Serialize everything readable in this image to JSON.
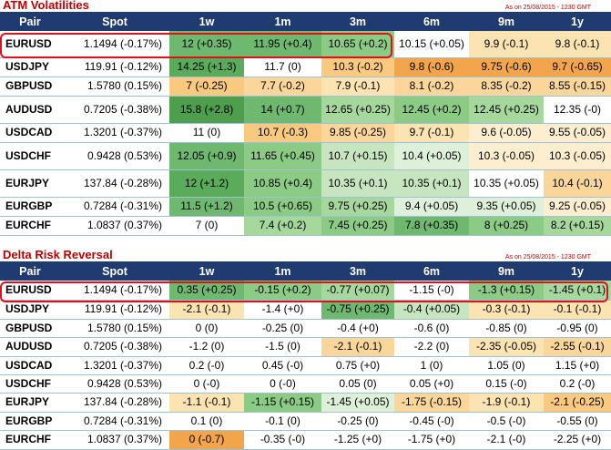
{
  "atm": {
    "title": "ATM Volatilities",
    "asof": "As on 25/08/2015 - 1230 GMT",
    "headers": [
      "Pair",
      "Spot",
      "1w",
      "1m",
      "3m",
      "6m",
      "9m",
      "1y"
    ],
    "rows": [
      {
        "pair": "EURUSD",
        "spot": "1.1494 (-0.17%)",
        "cells": [
          {
            "t": "12 (+0.35)",
            "c": "#6fb86f"
          },
          {
            "t": "11.95 (+0.4)",
            "c": "#6fb86f"
          },
          {
            "t": "10.65 (+0.2)",
            "c": "#8ccb86"
          },
          {
            "t": "10.15 (+0.05)",
            "c": "#ffffff"
          },
          {
            "t": "9.9 (-0.1)",
            "c": "#fbe3b2"
          },
          {
            "t": "9.8 (-0.1)",
            "c": "#fbe3b2"
          }
        ]
      },
      {
        "pair": "USDJPY",
        "spot": "119.91 (-0.12%)",
        "cells": [
          {
            "t": "14.25 (+1.3)",
            "c": "#5aac5a"
          },
          {
            "t": "11.7 (0)",
            "c": "#ffffff"
          },
          {
            "t": "10.3 (-0.2)",
            "c": "#f8c97e"
          },
          {
            "t": "9.8 (-0.6)",
            "c": "#f2a54b"
          },
          {
            "t": "9.75 (-0.6)",
            "c": "#f2a54b"
          },
          {
            "t": "9.7 (-0.65)",
            "c": "#f2a54b"
          }
        ]
      },
      {
        "pair": "GBPUSD",
        "spot": "1.5780 (0.15%)",
        "cells": [
          {
            "t": "7 (-0.25)",
            "c": "#f8c97e"
          },
          {
            "t": "7.7 (-0.2)",
            "c": "#fad69a"
          },
          {
            "t": "7.9 (-0.1)",
            "c": "#fbe3b2"
          },
          {
            "t": "8.1 (-0.2)",
            "c": "#fad69a"
          },
          {
            "t": "8.35 (-0.2)",
            "c": "#fad69a"
          },
          {
            "t": "8.55 (-0.15)",
            "c": "#fad69a"
          }
        ]
      },
      {
        "pair": "AUDUSD",
        "spot": "0.7205 (-0.38%)",
        "cells": [
          {
            "t": "15.8 (+2.8)",
            "c": "#4e9e4e"
          },
          {
            "t": "14 (+0.7)",
            "c": "#6fb86f"
          },
          {
            "t": "12.65 (+0.25)",
            "c": "#a6d79d"
          },
          {
            "t": "12.45 (+0.2)",
            "c": "#8ccb86"
          },
          {
            "t": "12.45 (+0.25)",
            "c": "#a6d79d"
          },
          {
            "t": "12.35 (-0)",
            "c": "#ffffff"
          }
        ]
      },
      {
        "pair": "USDCAD",
        "spot": "1.3201 (-0.37%)",
        "cells": [
          {
            "t": "11 (0)",
            "c": "#ffffff"
          },
          {
            "t": "10.7 (-0.3)",
            "c": "#f8c97e"
          },
          {
            "t": "9.85 (-0.25)",
            "c": "#fad69a"
          },
          {
            "t": "9.7 (-0.1)",
            "c": "#fbe3b2"
          },
          {
            "t": "9.6 (-0.05)",
            "c": "#fdeed0"
          },
          {
            "t": "9.55 (-0.05)",
            "c": "#fdeed0"
          }
        ]
      },
      {
        "pair": "USDCHF",
        "spot": "0.9428 (0.53%)",
        "cells": [
          {
            "t": "12.05 (+0.9)",
            "c": "#6fb86f"
          },
          {
            "t": "11.65 (+0.45)",
            "c": "#8ccb86"
          },
          {
            "t": "10.7 (+0.15)",
            "c": "#c7e6bf"
          },
          {
            "t": "10.4 (+0.05)",
            "c": "#dff0da"
          },
          {
            "t": "10.3 (-0.05)",
            "c": "#fdeed0"
          },
          {
            "t": "10.3 (-0.05)",
            "c": "#fdeed0"
          }
        ]
      },
      {
        "pair": "EURJPY",
        "spot": "137.84 (-0.28%)",
        "cells": [
          {
            "t": "12 (+1.2)",
            "c": "#5aac5a"
          },
          {
            "t": "10.85 (+0.4)",
            "c": "#8ccb86"
          },
          {
            "t": "10.35 (+0.1)",
            "c": "#c7e6bf"
          },
          {
            "t": "10.35 (+0.1)",
            "c": "#c7e6bf"
          },
          {
            "t": "10.35 (+0.05)",
            "c": "#ffffff"
          },
          {
            "t": "10.4 (-0.1)",
            "c": "#fad69a"
          }
        ]
      },
      {
        "pair": "EURGBP",
        "spot": "0.7284 (-0.31%)",
        "cells": [
          {
            "t": "11.5 (+1.2)",
            "c": "#6fb86f"
          },
          {
            "t": "10.5 (+0.65)",
            "c": "#8ccb86"
          },
          {
            "t": "9.75 (+0.25)",
            "c": "#a6d79d"
          },
          {
            "t": "9.4 (+0.05)",
            "c": "#dff0da"
          },
          {
            "t": "9.35 (+0.05)",
            "c": "#dff0da"
          },
          {
            "t": "9.25 (-0.05)",
            "c": "#fdeed0"
          }
        ]
      },
      {
        "pair": "EURCHF",
        "spot": "1.0837 (0.37%)",
        "cells": [
          {
            "t": "7 (0)",
            "c": "#ffffff"
          },
          {
            "t": "7.4 (+0.2)",
            "c": "#a6d79d"
          },
          {
            "t": "7.45 (+0.25)",
            "c": "#8ccb86"
          },
          {
            "t": "7.8 (+0.35)",
            "c": "#6fb86f"
          },
          {
            "t": "8 (+0.25)",
            "c": "#8ccb86"
          },
          {
            "t": "8.2 (+0.15)",
            "c": "#a6d79d"
          }
        ]
      }
    ]
  },
  "rr": {
    "title": "Delta Risk Reversal",
    "asof": "As on 25/08/2015 - 1230 GMT",
    "headers": [
      "Pair",
      "Spot",
      "1w",
      "1m",
      "3m",
      "6m",
      "9m",
      "1y"
    ],
    "rows": [
      {
        "pair": "EURUSD",
        "spot": "1.1494 (-0.17%)",
        "cells": [
          {
            "t": "0.35 (+0.25)",
            "c": "#6fb86f"
          },
          {
            "t": "-0.15 (+0.2)",
            "c": "#8ccb86"
          },
          {
            "t": "-0.77 (+0.07)",
            "c": "#a6d79d"
          },
          {
            "t": "-1.15 (-0)",
            "c": "#ffffff"
          },
          {
            "t": "-1.3 (+0.15)",
            "c": "#8ccb86"
          },
          {
            "t": "-1.45 (+0.1)",
            "c": "#a6d79d"
          }
        ]
      },
      {
        "pair": "USDJPY",
        "spot": "119.91 (-0.12%)",
        "cells": [
          {
            "t": "-2.1 (-0.1)",
            "c": "#fbe3b2"
          },
          {
            "t": "-1.4 (+0)",
            "c": "#ffffff"
          },
          {
            "t": "-0.75 (+0.25)",
            "c": "#6fb86f"
          },
          {
            "t": "-0.4 (+0.05)",
            "c": "#c7e6bf"
          },
          {
            "t": "-0.3 (-0.1)",
            "c": "#fbe3b2"
          },
          {
            "t": "-0.1 (-0.1)",
            "c": "#fbe3b2"
          }
        ]
      },
      {
        "pair": "GBPUSD",
        "spot": "1.5780 (0.15%)",
        "cells": [
          {
            "t": "0 (0)",
            "c": "#ffffff"
          },
          {
            "t": "-0.25 (0)",
            "c": "#ffffff"
          },
          {
            "t": "-0.4 (+0)",
            "c": "#ffffff"
          },
          {
            "t": "-0.6 (0)",
            "c": "#ffffff"
          },
          {
            "t": "-0.85 (0)",
            "c": "#ffffff"
          },
          {
            "t": "-0.95 (0)",
            "c": "#ffffff"
          }
        ]
      },
      {
        "pair": "AUDUSD",
        "spot": "0.7205 (-0.38%)",
        "cells": [
          {
            "t": "-1.2 (0)",
            "c": "#ffffff"
          },
          {
            "t": "-1.5 (0)",
            "c": "#ffffff"
          },
          {
            "t": "-2.1 (-0.1)",
            "c": "#fad69a"
          },
          {
            "t": "-2.2 (0)",
            "c": "#ffffff"
          },
          {
            "t": "-2.35 (-0.05)",
            "c": "#fbe3b2"
          },
          {
            "t": "-2.55 (-0.1)",
            "c": "#fad69a"
          }
        ]
      },
      {
        "pair": "USDCAD",
        "spot": "1.3201 (-0.37%)",
        "cells": [
          {
            "t": "0.2 (-0)",
            "c": "#ffffff"
          },
          {
            "t": "0.45 (-0)",
            "c": "#ffffff"
          },
          {
            "t": "0.75 (+0)",
            "c": "#ffffff"
          },
          {
            "t": "1 (0)",
            "c": "#ffffff"
          },
          {
            "t": "1.05 (0)",
            "c": "#ffffff"
          },
          {
            "t": "1.15 (+0)",
            "c": "#ffffff"
          }
        ]
      },
      {
        "pair": "USDCHF",
        "spot": "0.9428 (0.53%)",
        "cells": [
          {
            "t": "0 (-0)",
            "c": "#ffffff"
          },
          {
            "t": "0 (-0)",
            "c": "#ffffff"
          },
          {
            "t": "0.05 (0)",
            "c": "#ffffff"
          },
          {
            "t": "0.05 (+0)",
            "c": "#ffffff"
          },
          {
            "t": "0.15 (-0)",
            "c": "#ffffff"
          },
          {
            "t": "0.2 (-0)",
            "c": "#ffffff"
          }
        ]
      },
      {
        "pair": "EURJPY",
        "spot": "137.84 (-0.28%)",
        "cells": [
          {
            "t": "-1.1 (-0.1)",
            "c": "#fbe3b2"
          },
          {
            "t": "-1.15 (+0.15)",
            "c": "#8ccb86"
          },
          {
            "t": "-1.45 (+0.05)",
            "c": "#dff0da"
          },
          {
            "t": "-1.75 (-0.15)",
            "c": "#fad69a"
          },
          {
            "t": "-1.9 (-0.1)",
            "c": "#fbe3b2"
          },
          {
            "t": "-2.1 (-0.25)",
            "c": "#f8c97e"
          }
        ]
      },
      {
        "pair": "EURGBP",
        "spot": "0.7284 (-0.31%)",
        "cells": [
          {
            "t": "0.1 (0)",
            "c": "#ffffff"
          },
          {
            "t": "-0.1 (0)",
            "c": "#ffffff"
          },
          {
            "t": "-0.25 (0)",
            "c": "#ffffff"
          },
          {
            "t": "-0.45 (-0)",
            "c": "#ffffff"
          },
          {
            "t": "-0.5 (-0)",
            "c": "#ffffff"
          },
          {
            "t": "-0.55 (0)",
            "c": "#ffffff"
          }
        ]
      },
      {
        "pair": "EURCHF",
        "spot": "1.0837 (0.37%)",
        "cells": [
          {
            "t": "0 (-0.7)",
            "c": "#f2a54b"
          },
          {
            "t": "-0.35 (-0)",
            "c": "#ffffff"
          },
          {
            "t": "-1.25 (+0)",
            "c": "#ffffff"
          },
          {
            "t": "-1.75 (+0)",
            "c": "#ffffff"
          },
          {
            "t": "-2.1 (-0)",
            "c": "#ffffff"
          },
          {
            "t": "-2.25 (+0)",
            "c": "#ffffff"
          }
        ]
      }
    ]
  },
  "chart_data": [
    {
      "type": "table",
      "title": "ATM Volatilities",
      "subtitle": "As on 25/08/2015 - 1230 GMT",
      "columns": [
        "Pair",
        "Spot",
        "1w",
        "1m",
        "3m",
        "6m",
        "9m",
        "1y"
      ],
      "rows": [
        [
          "EURUSD",
          "1.1494 (-0.17%)",
          "12 (+0.35)",
          "11.95 (+0.4)",
          "10.65 (+0.2)",
          "10.15 (+0.05)",
          "9.9 (-0.1)",
          "9.8 (-0.1)"
        ],
        [
          "USDJPY",
          "119.91 (-0.12%)",
          "14.25 (+1.3)",
          "11.7 (0)",
          "10.3 (-0.2)",
          "9.8 (-0.6)",
          "9.75 (-0.6)",
          "9.7 (-0.65)"
        ],
        [
          "GBPUSD",
          "1.5780 (0.15%)",
          "7 (-0.25)",
          "7.7 (-0.2)",
          "7.9 (-0.1)",
          "8.1 (-0.2)",
          "8.35 (-0.2)",
          "8.55 (-0.15)"
        ],
        [
          "AUDUSD",
          "0.7205 (-0.38%)",
          "15.8 (+2.8)",
          "14 (+0.7)",
          "12.65 (+0.25)",
          "12.45 (+0.2)",
          "12.45 (+0.25)",
          "12.35 (-0)"
        ],
        [
          "USDCAD",
          "1.3201 (-0.37%)",
          "11 (0)",
          "10.7 (-0.3)",
          "9.85 (-0.25)",
          "9.7 (-0.1)",
          "9.6 (-0.05)",
          "9.55 (-0.05)"
        ],
        [
          "USDCHF",
          "0.9428 (0.53%)",
          "12.05 (+0.9)",
          "11.65 (+0.45)",
          "10.7 (+0.15)",
          "10.4 (+0.05)",
          "10.3 (-0.05)",
          "10.3 (-0.05)"
        ],
        [
          "EURJPY",
          "137.84 (-0.28%)",
          "12 (+1.2)",
          "10.85 (+0.4)",
          "10.35 (+0.1)",
          "10.35 (+0.1)",
          "10.35 (+0.05)",
          "10.4 (-0.1)"
        ],
        [
          "EURGBP",
          "0.7284 (-0.31%)",
          "11.5 (+1.2)",
          "10.5 (+0.65)",
          "9.75 (+0.25)",
          "9.4 (+0.05)",
          "9.35 (+0.05)",
          "9.25 (-0.05)"
        ],
        [
          "EURCHF",
          "1.0837 (0.37%)",
          "7 (0)",
          "7.4 (+0.2)",
          "7.45 (+0.25)",
          "7.8 (+0.35)",
          "8 (+0.25)",
          "8.2 (+0.15)"
        ]
      ],
      "highlighted_row": "EURUSD"
    },
    {
      "type": "table",
      "title": "Delta Risk Reversal",
      "subtitle": "As on 25/08/2015 - 1230 GMT",
      "columns": [
        "Pair",
        "Spot",
        "1w",
        "1m",
        "3m",
        "6m",
        "9m",
        "1y"
      ],
      "rows": [
        [
          "EURUSD",
          "1.1494 (-0.17%)",
          "0.35 (+0.25)",
          "-0.15 (+0.2)",
          "-0.77 (+0.07)",
          "-1.15 (-0)",
          "-1.3 (+0.15)",
          "-1.45 (+0.1)"
        ],
        [
          "USDJPY",
          "119.91 (-0.12%)",
          "-2.1 (-0.1)",
          "-1.4 (+0)",
          "-0.75 (+0.25)",
          "-0.4 (+0.05)",
          "-0.3 (-0.1)",
          "-0.1 (-0.1)"
        ],
        [
          "GBPUSD",
          "1.5780 (0.15%)",
          "0 (0)",
          "-0.25 (0)",
          "-0.4 (+0)",
          "-0.6 (0)",
          "-0.85 (0)",
          "-0.95 (0)"
        ],
        [
          "AUDUSD",
          "0.7205 (-0.38%)",
          "-1.2 (0)",
          "-1.5 (0)",
          "-2.1 (-0.1)",
          "-2.2 (0)",
          "-2.35 (-0.05)",
          "-2.55 (-0.1)"
        ],
        [
          "USDCAD",
          "1.3201 (-0.37%)",
          "0.2 (-0)",
          "0.45 (-0)",
          "0.75 (+0)",
          "1 (0)",
          "1.05 (0)",
          "1.15 (+0)"
        ],
        [
          "USDCHF",
          "0.9428 (0.53%)",
          "0 (-0)",
          "0 (-0)",
          "0.05 (0)",
          "0.05 (+0)",
          "0.15 (-0)",
          "0.2 (-0)"
        ],
        [
          "EURJPY",
          "137.84 (-0.28%)",
          "-1.1 (-0.1)",
          "-1.15 (+0.15)",
          "-1.45 (+0.05)",
          "-1.75 (-0.15)",
          "-1.9 (-0.1)",
          "-2.1 (-0.25)"
        ],
        [
          "EURGBP",
          "0.7284 (-0.31%)",
          "0.1 (0)",
          "-0.1 (0)",
          "-0.25 (0)",
          "-0.45 (-0)",
          "-0.5 (-0)",
          "-0.55 (0)"
        ],
        [
          "EURCHF",
          "1.0837 (0.37%)",
          "0 (-0.7)",
          "-0.35 (-0)",
          "-1.25 (+0)",
          "-1.75 (+0)",
          "-2.1 (-0)",
          "-2.25 (+0)"
        ]
      ],
      "highlighted_row": "EURUSD"
    }
  ]
}
